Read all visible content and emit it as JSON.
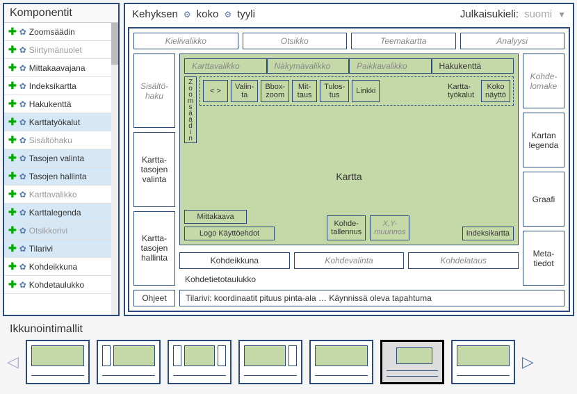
{
  "sidebar": {
    "title": "Komponentit",
    "items": [
      {
        "label": "Zoomsäädin",
        "blue": false,
        "gray": false
      },
      {
        "label": "Siirtymänuolet",
        "blue": false,
        "gray": true
      },
      {
        "label": "Mittakaavajana",
        "blue": false,
        "gray": false
      },
      {
        "label": "Indeksikartta",
        "blue": false,
        "gray": false
      },
      {
        "label": "Hakukenttä",
        "blue": false,
        "gray": false
      },
      {
        "label": "Karttatyökalut",
        "blue": true,
        "gray": false
      },
      {
        "label": "Sisältöhaku",
        "blue": false,
        "gray": true
      },
      {
        "label": "Tasojen valinta",
        "blue": true,
        "gray": false
      },
      {
        "label": "Tasojen hallinta",
        "blue": true,
        "gray": false
      },
      {
        "label": "Karttavalikko",
        "blue": false,
        "gray": true
      },
      {
        "label": "Karttalegenda",
        "blue": true,
        "gray": false
      },
      {
        "label": "Otsikkorivi",
        "blue": true,
        "gray": true
      },
      {
        "label": "Tilarivi",
        "blue": true,
        "gray": false
      },
      {
        "label": "Kohdeikkuna",
        "blue": false,
        "gray": false
      },
      {
        "label": "Kohdetaulukko",
        "blue": false,
        "gray": false
      }
    ]
  },
  "header": {
    "frame_label": "Kehyksen",
    "size": "koko",
    "style": "tyyli",
    "publish_lang_label": "Julkaisukieli:",
    "lang_value": "suomi"
  },
  "layout": {
    "top_row": [
      {
        "label": "Kielivalikko",
        "it": true
      },
      {
        "label": "Otsikko",
        "it": true
      },
      {
        "label": "Teemakartta",
        "it": true
      },
      {
        "label": "Analyysi",
        "it": true
      }
    ],
    "left_col": [
      {
        "label": "Sisältö-\nhaku",
        "it": true
      },
      {
        "label": "Kartta-\ntasojen\nvalinta",
        "it": false
      },
      {
        "label": "Kartta-\ntasojen\nhallinta",
        "it": false
      }
    ],
    "right_col": [
      {
        "label": "Kohde-\nlomake",
        "it": true
      },
      {
        "label": "Kartan\nlegenda",
        "it": false
      },
      {
        "label": "Graafi",
        "it": false
      },
      {
        "label": "Meta-\ntiedot",
        "it": false
      }
    ],
    "tabs": [
      {
        "label": "Karttavalikko",
        "active": false
      },
      {
        "label": "Näkymävalikko",
        "active": false
      },
      {
        "label": "Paikkavalikko",
        "active": false
      },
      {
        "label": "Hakukenttä",
        "active": true
      }
    ],
    "zoom_label": "Zoomsäädin",
    "tools": [
      "< >",
      "Valin-\nta",
      "Bbox-\nzoom",
      "Mit-\ntaus",
      "Tulos-\ntus",
      "Linkki"
    ],
    "tool_group": "Kartta-\ntyökalut",
    "fullscreen": "Koko\nnäyttö",
    "map_label": "Kartta",
    "scale": "Mittakaava",
    "logo": "Logo Käyttöehdot",
    "save": "Kohde-\ntallennus",
    "xy": "X,Y-\nmuunnos",
    "index": "Indeksikartta",
    "below_map": [
      {
        "label": "Kohdeikkuna",
        "it": false
      },
      {
        "label": "Kohdevalinta",
        "it": true
      },
      {
        "label": "Kohdelataus",
        "it": true
      }
    ],
    "table_label": "Kohdetietotaulukko",
    "help": "Ohjeet",
    "status": "Tilarivi:  koordinaatit pituus  pinta-ala    … Käynnissä oleva tapahtuma"
  },
  "templates_title": "Ikkunointimallit",
  "colors": {
    "green": "#c5d9a8",
    "border": "#2a4a7a"
  }
}
